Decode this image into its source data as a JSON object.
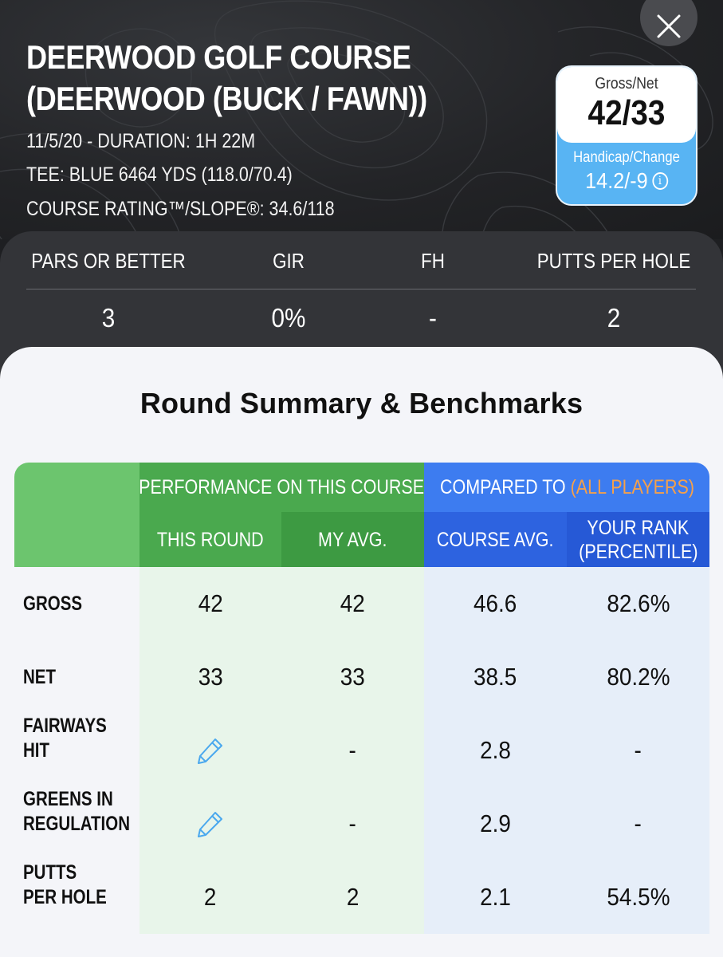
{
  "header": {
    "title_line1": "DEERWOOD GOLF COURSE",
    "title_line2": "(DEERWOOD (BUCK / FAWN))",
    "date_duration": "11/5/20 - DURATION: 1H 22M",
    "tee": "TEE: BLUE 6464 YDS (118.0/70.4)",
    "rating_slope": "COURSE RATING™/SLOPE®: 34.6/118",
    "close_icon": "close-icon"
  },
  "score_card": {
    "gross_net_label": "Gross/Net",
    "gross_net_value": "42/33",
    "handicap_label": "Handicap/Change",
    "handicap_value": "14.2/-9",
    "info_icon": "i",
    "colors": {
      "top": "#ffffff",
      "bottom": "#58b4f3"
    }
  },
  "stats": [
    {
      "label": "PARS OR BETTER",
      "value": "3"
    },
    {
      "label": "GIR",
      "value": "0%"
    },
    {
      "label": "FH",
      "value": "-"
    },
    {
      "label": "PUTTS PER HOLE",
      "value": "2"
    }
  ],
  "summary": {
    "title": "Round Summary & Benchmarks",
    "group_performance": "PERFORMANCE ON THIS COURSE",
    "group_compared_prefix": "COMPARED TO ",
    "group_compared_accent": "(ALL PLAYERS)",
    "columns": {
      "this_round": "THIS ROUND",
      "my_avg": "MY AVG.",
      "course_avg": "COURSE AVG.",
      "your_rank_line1": "YOUR RANK",
      "your_rank_line2": "(PERCENTILE)"
    },
    "rows": [
      {
        "label1": "GROSS",
        "label2": "",
        "this_round": "42",
        "my_avg": "42",
        "course_avg": "46.6",
        "rank": "82.6%"
      },
      {
        "label1": "NET",
        "label2": "",
        "this_round": "33",
        "my_avg": "33",
        "course_avg": "38.5",
        "rank": "80.2%"
      },
      {
        "label1": "FAIRWAYS",
        "label2": "HIT",
        "this_round": "",
        "my_avg": "-",
        "course_avg": "2.8",
        "rank": "-",
        "edit_icon": "pencil-icon"
      },
      {
        "label1": "GREENS IN",
        "label2": "REGULATION",
        "this_round": "",
        "my_avg": "-",
        "course_avg": "2.9",
        "rank": "-",
        "edit_icon": "pencil-icon"
      },
      {
        "label1": "PUTTS",
        "label2": "PER HOLE",
        "this_round": "2",
        "my_avg": "2",
        "course_avg": "2.1",
        "rank": "54.5%"
      }
    ],
    "colors": {
      "green_light": "#6cc56e",
      "green_mid": "#4aa94e",
      "green_dark": "#3d9a42",
      "blue_light": "#3d7cf0",
      "blue_dark": "#2659d6",
      "green_body": "#e8f5ea",
      "blue_body": "#e6eef9",
      "accent_orange": "#f5a04a",
      "pencil": "#4aa8ee"
    }
  }
}
